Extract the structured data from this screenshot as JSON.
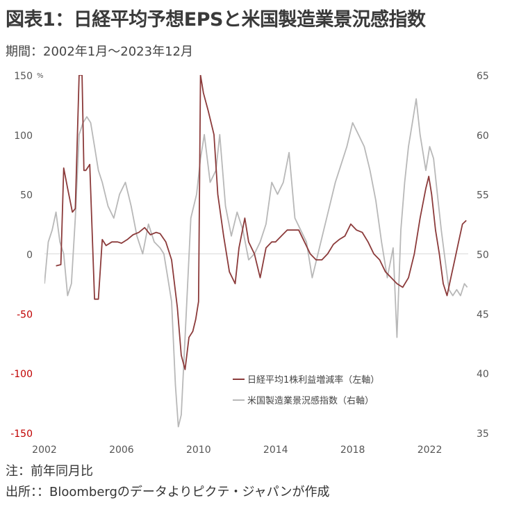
{
  "header": {
    "title": "図表1：日経平均予想EPSと米国製造業景況感指数",
    "subtitle": "期間：2002年1月～2023年12月"
  },
  "notes": {
    "note": "注：前年同月比",
    "source": "出所：：Bloombergのデータよりピクテ・ジャパンが作成"
  },
  "colors": {
    "eps": "#8b3a3a",
    "ism": "#b8b8b8",
    "negative_label": "#c00000",
    "zero_line": "#d9d9d9"
  },
  "chart_data": {
    "type": "line",
    "left_axis": {
      "range": [
        -150,
        150
      ],
      "ticks": [
        150,
        100,
        50,
        0,
        -50,
        -100,
        -150
      ],
      "unit": "%"
    },
    "right_axis": {
      "range": [
        35,
        65
      ],
      "ticks": [
        65,
        60,
        55,
        50,
        45,
        40,
        35
      ]
    },
    "x_axis": {
      "range": [
        2002,
        2024
      ],
      "ticks": [
        "2002",
        "2006",
        "2010",
        "2014",
        "2018",
        "2022"
      ]
    },
    "legend": {
      "placement": "bottom-center"
    },
    "series": [
      {
        "name": "日経平均1株利益増減率（左軸）",
        "axis": "left",
        "x": [
          2002.0,
          2002.3,
          2002.6,
          2002.85,
          2003.0,
          2003.2,
          2003.45,
          2003.6,
          2003.8,
          2003.95,
          2004.05,
          2004.15,
          2004.35,
          2004.6,
          2004.8,
          2005.0,
          2005.2,
          2005.5,
          2005.8,
          2006.0,
          2006.3,
          2006.6,
          2006.9,
          2007.2,
          2007.5,
          2007.8,
          2008.0,
          2008.3,
          2008.6,
          2008.9,
          2009.1,
          2009.3,
          2009.5,
          2009.7,
          2009.85,
          2010.0,
          2010.1,
          2010.25,
          2010.5,
          2010.8,
          2011.0,
          2011.3,
          2011.6,
          2011.9,
          2012.1,
          2012.4,
          2012.6,
          2012.9,
          2013.2,
          2013.5,
          2013.8,
          2014.0,
          2014.3,
          2014.6,
          2014.9,
          2015.2,
          2015.5,
          2015.8,
          2016.1,
          2016.4,
          2016.7,
          2017.0,
          2017.3,
          2017.6,
          2017.9,
          2018.2,
          2018.5,
          2018.8,
          2019.1,
          2019.4,
          2019.7,
          2020.0,
          2020.3,
          2020.6,
          2020.9,
          2021.2,
          2021.5,
          2021.8,
          2021.95,
          2022.1,
          2022.3,
          2022.5,
          2022.7,
          2022.9,
          2023.1,
          2023.3,
          2023.5,
          2023.7,
          2023.9
        ],
        "values": [
          null,
          null,
          -10,
          -9,
          72,
          55,
          35,
          38,
          150,
          150,
          70,
          70,
          75,
          -38,
          -38,
          12,
          7,
          10,
          10,
          9,
          12,
          16,
          18,
          22,
          16,
          18,
          17,
          10,
          -5,
          -45,
          -85,
          -97,
          -70,
          -65,
          -55,
          -40,
          150,
          135,
          120,
          100,
          50,
          15,
          -15,
          -25,
          5,
          30,
          10,
          0,
          -20,
          5,
          10,
          10,
          15,
          20,
          20,
          20,
          10,
          0,
          -5,
          -5,
          0,
          8,
          12,
          15,
          25,
          20,
          18,
          10,
          0,
          -5,
          -15,
          -20,
          -25,
          -28,
          -20,
          0,
          30,
          55,
          65,
          50,
          20,
          0,
          -25,
          -35,
          -20,
          -5,
          10,
          25,
          28
        ]
      },
      {
        "name": "米国製造業景況感指数（右軸）",
        "axis": "right",
        "x": [
          2002.0,
          2002.2,
          2002.4,
          2002.6,
          2002.8,
          2003.0,
          2003.2,
          2003.4,
          2003.6,
          2003.8,
          2004.0,
          2004.2,
          2004.4,
          2004.6,
          2004.8,
          2005.0,
          2005.3,
          2005.6,
          2005.9,
          2006.2,
          2006.5,
          2006.8,
          2007.1,
          2007.4,
          2007.7,
          2008.0,
          2008.2,
          2008.4,
          2008.6,
          2008.8,
          2008.95,
          2009.1,
          2009.3,
          2009.6,
          2009.9,
          2010.1,
          2010.3,
          2010.6,
          2010.9,
          2011.1,
          2011.4,
          2011.7,
          2012.0,
          2012.3,
          2012.6,
          2012.9,
          2013.2,
          2013.5,
          2013.8,
          2014.1,
          2014.4,
          2014.7,
          2015.0,
          2015.3,
          2015.6,
          2015.9,
          2016.2,
          2016.5,
          2016.8,
          2017.1,
          2017.4,
          2017.7,
          2018.0,
          2018.3,
          2018.6,
          2018.9,
          2019.2,
          2019.5,
          2019.8,
          2020.1,
          2020.3,
          2020.5,
          2020.7,
          2020.9,
          2021.1,
          2021.3,
          2021.5,
          2021.8,
          2022.0,
          2022.2,
          2022.4,
          2022.6,
          2022.8,
          2023.0,
          2023.2,
          2023.4,
          2023.6,
          2023.8,
          2023.95
        ],
        "values": [
          47.5,
          51,
          52,
          53.5,
          51,
          50,
          46.5,
          47.5,
          53,
          60,
          61,
          61.5,
          61,
          59,
          57,
          56,
          54,
          53,
          55,
          56,
          54,
          51.5,
          50,
          52.5,
          51,
          50.5,
          50,
          48,
          46,
          39,
          35.5,
          36.5,
          43,
          53,
          55,
          58,
          60,
          56,
          57,
          60,
          54,
          51.5,
          53.5,
          52,
          49.5,
          50,
          51,
          52.5,
          56,
          55,
          56,
          58.5,
          53,
          52,
          51,
          48,
          50,
          52,
          54,
          56,
          57.5,
          59,
          61,
          60,
          59,
          57,
          54.5,
          51,
          48,
          50.5,
          43,
          52,
          56,
          59,
          61,
          63,
          60,
          57,
          59,
          58,
          55,
          52,
          49.5,
          47,
          46.5,
          47,
          46.5,
          47.5,
          47.2
        ]
      }
    ]
  },
  "axis_labels": {
    "left": [
      "150",
      "100",
      "50",
      "0",
      "-50",
      "-100",
      "-150"
    ],
    "right": [
      "65",
      "60",
      "55",
      "50",
      "45",
      "40",
      "35"
    ],
    "x": [
      "2002",
      "2006",
      "2010",
      "2014",
      "2018",
      "2022"
    ],
    "unit": "%"
  }
}
